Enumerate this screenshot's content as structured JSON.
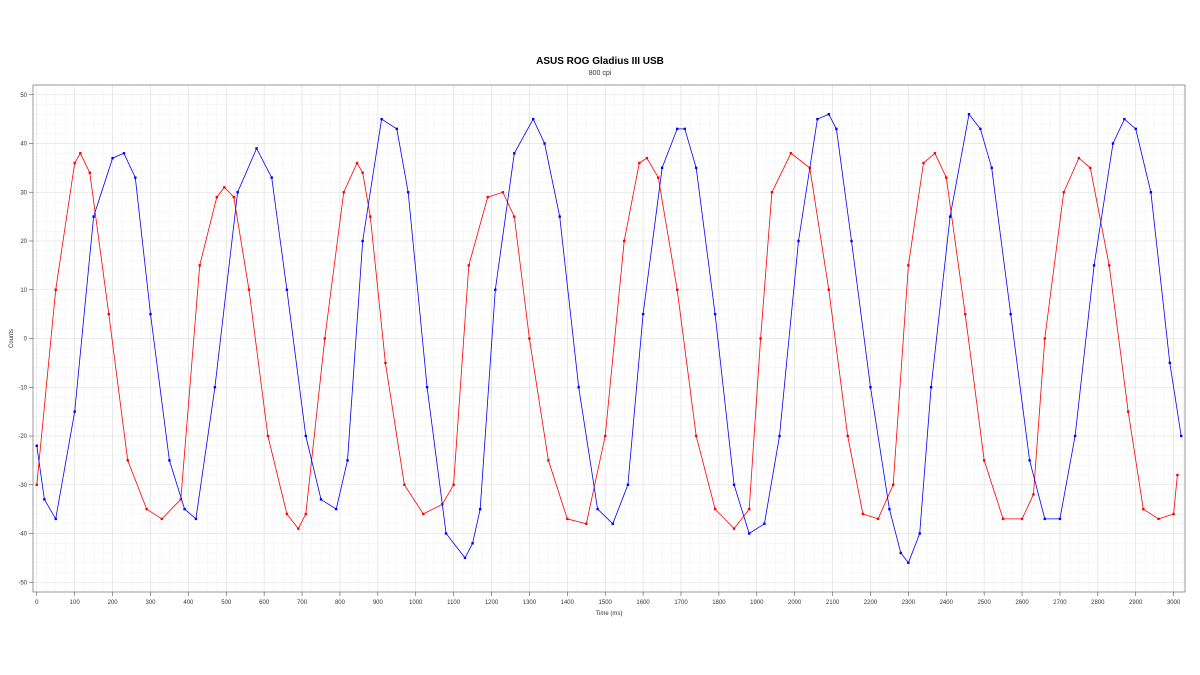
{
  "chart_data": {
    "type": "scatter",
    "title": "ASUS ROG Gladius III USB",
    "subtitle": "800 cpi",
    "xlabel": "Time (ms)",
    "ylabel": "Counts",
    "xlim": [
      -10,
      3030
    ],
    "ylim": [
      -52,
      52
    ],
    "x_ticks": [
      0,
      100,
      200,
      300,
      400,
      500,
      600,
      700,
      800,
      900,
      1000,
      1100,
      1200,
      1300,
      1400,
      1500,
      1600,
      1700,
      1800,
      1900,
      2000,
      2100,
      2200,
      2300,
      2400,
      2500,
      2600,
      2700,
      2800,
      2900,
      3000
    ],
    "y_ticks": [
      -50,
      -40,
      -30,
      -20,
      -10,
      0,
      10,
      20,
      30,
      40,
      50
    ],
    "grid": true,
    "legend": "none",
    "series": [
      {
        "color": "#ff0000",
        "x": [
          0,
          50,
          100,
          115,
          140,
          190,
          240,
          290,
          330,
          380,
          430,
          475,
          495,
          520,
          560,
          610,
          660,
          690,
          710,
          760,
          810,
          845,
          860,
          880,
          920,
          970,
          1020,
          1070,
          1100,
          1140,
          1190,
          1230,
          1260,
          1300,
          1350,
          1400,
          1450,
          1500,
          1550,
          1590,
          1610,
          1640,
          1690,
          1740,
          1790,
          1840,
          1880,
          1910,
          1940,
          1990,
          2040,
          2090,
          2140,
          2180,
          2220,
          2260,
          2300,
          2340,
          2370,
          2400,
          2450,
          2500,
          2550,
          2600,
          2630,
          2660,
          2710,
          2750,
          2780,
          2830,
          2880,
          2920,
          2960,
          3000,
          3010
        ],
        "y": [
          -30,
          10,
          36,
          38,
          34,
          5,
          -25,
          -35,
          -37,
          -33,
          15,
          29,
          31,
          29,
          10,
          -20,
          -36,
          -39,
          -36,
          0,
          30,
          36,
          34,
          25,
          -5,
          -30,
          -36,
          -34,
          -30,
          15,
          29,
          30,
          25,
          0,
          -25,
          -37,
          -38,
          -20,
          20,
          36,
          37,
          33,
          10,
          -20,
          -35,
          -39,
          -35,
          0,
          30,
          38,
          35,
          10,
          -20,
          -36,
          -37,
          -30,
          15,
          36,
          38,
          33,
          5,
          -25,
          -37,
          -37,
          -32,
          0,
          30,
          37,
          35,
          15,
          -15,
          -35,
          -37,
          -36,
          -28
        ]
      },
      {
        "color": "#0000ff",
        "x": [
          0,
          20,
          50,
          100,
          150,
          200,
          230,
          260,
          300,
          350,
          390,
          420,
          470,
          530,
          580,
          620,
          660,
          710,
          750,
          790,
          820,
          860,
          910,
          950,
          980,
          1030,
          1080,
          1130,
          1150,
          1170,
          1210,
          1260,
          1310,
          1340,
          1380,
          1430,
          1480,
          1520,
          1560,
          1600,
          1650,
          1690,
          1710,
          1740,
          1790,
          1840,
          1880,
          1920,
          1960,
          2010,
          2060,
          2090,
          2110,
          2150,
          2200,
          2250,
          2280,
          2300,
          2330,
          2360,
          2410,
          2460,
          2490,
          2520,
          2570,
          2620,
          2660,
          2700,
          2740,
          2790,
          2840,
          2870,
          2900,
          2940,
          2990,
          3020
        ],
        "y": [
          -22,
          -33,
          -37,
          -15,
          25,
          37,
          38,
          33,
          5,
          -25,
          -35,
          -37,
          -10,
          30,
          39,
          33,
          10,
          -20,
          -33,
          -35,
          -25,
          20,
          45,
          43,
          30,
          -10,
          -40,
          -45,
          -42,
          -35,
          10,
          38,
          45,
          40,
          25,
          -10,
          -35,
          -38,
          -30,
          5,
          35,
          43,
          43,
          35,
          5,
          -30,
          -40,
          -38,
          -20,
          20,
          45,
          46,
          43,
          20,
          -10,
          -35,
          -44,
          -46,
          -40,
          -10,
          25,
          46,
          43,
          35,
          5,
          -25,
          -37,
          -37,
          -20,
          15,
          40,
          45,
          43,
          30,
          -5,
          -20
        ]
      }
    ]
  }
}
